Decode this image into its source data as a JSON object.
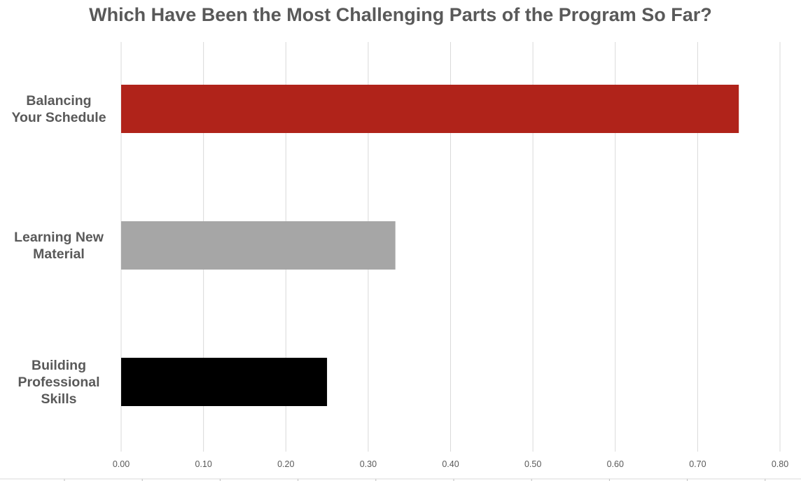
{
  "chart_data": {
    "type": "bar",
    "orientation": "horizontal",
    "title": "Which Have Been the Most Challenging Parts of the Program So Far?",
    "categories": [
      "Balancing\nYour Schedule",
      "Learning New\nMaterial",
      "Building\nProfessional\nSkills"
    ],
    "values": [
      0.75,
      0.333,
      0.25
    ],
    "colors": [
      "#b0231a",
      "#a6a6a6",
      "#000000"
    ],
    "xlim": [
      0,
      0.8
    ],
    "xticks": [
      "0.00",
      "0.10",
      "0.20",
      "0.30",
      "0.40",
      "0.50",
      "0.60",
      "0.70",
      "0.80"
    ],
    "grid": true,
    "legend": "none"
  }
}
